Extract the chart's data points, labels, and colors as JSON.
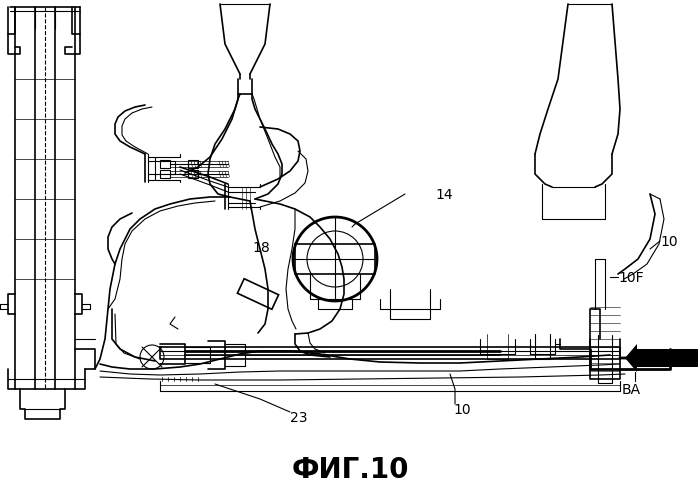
{
  "title": "ФИГ.10",
  "title_fontsize": 20,
  "title_fontweight": "bold",
  "bg_color": "#ffffff",
  "line_color": "#000000",
  "fig_width": 7.0,
  "fig_height": 4.89,
  "dpi": 100
}
